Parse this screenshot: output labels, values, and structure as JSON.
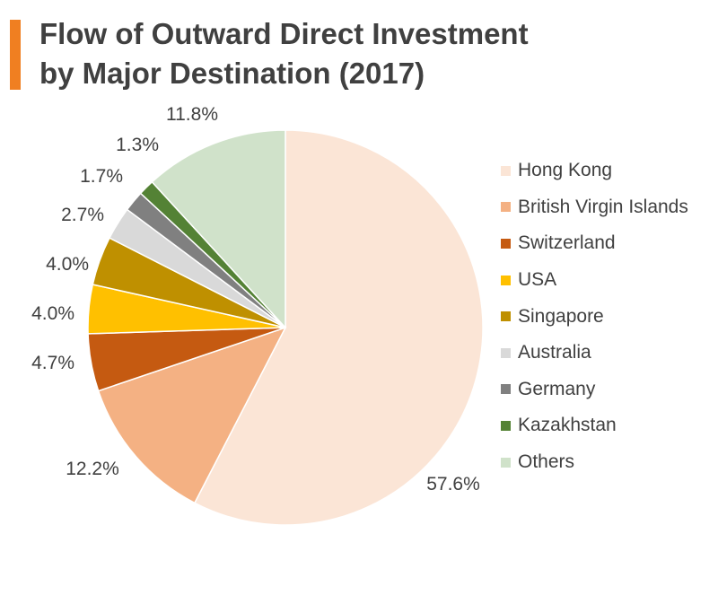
{
  "header": {
    "title_line1": "Flow of Outward Direct Investment",
    "title_line2": "by Major Destination (2017)",
    "accent_color": "#f07f21"
  },
  "chart_data": {
    "type": "pie",
    "title": "Flow of Outward Direct Investment by Major Destination (2017)",
    "legend_position": "right",
    "start_angle_deg": 0,
    "direction": "clockwise",
    "slices": [
      {
        "name": "Hong Kong",
        "value": 57.6,
        "label": "57.6%",
        "color": "#fbe5d6"
      },
      {
        "name": "British Virgin Islands",
        "value": 12.2,
        "label": "12.2%",
        "color": "#f4b183"
      },
      {
        "name": "Switzerland",
        "value": 4.7,
        "label": "4.7%",
        "color": "#c55a11"
      },
      {
        "name": "USA",
        "value": 4.0,
        "label": "4.0%",
        "color": "#ffc000"
      },
      {
        "name": "Singapore",
        "value": 4.0,
        "label": "4.0%",
        "color": "#bf9000"
      },
      {
        "name": "Australia",
        "value": 2.7,
        "label": "2.7%",
        "color": "#d9d9d9"
      },
      {
        "name": "Germany",
        "value": 1.7,
        "label": "1.7%",
        "color": "#808080"
      },
      {
        "name": "Kazakhstan",
        "value": 1.3,
        "label": "1.3%",
        "color": "#548235"
      },
      {
        "name": "Others",
        "value": 11.8,
        "label": "11.8%",
        "color": "#d0e2ca"
      }
    ]
  }
}
